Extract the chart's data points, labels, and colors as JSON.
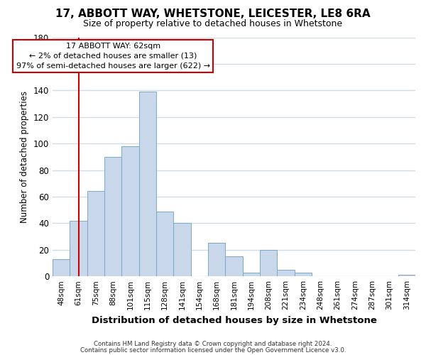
{
  "title": "17, ABBOTT WAY, WHETSTONE, LEICESTER, LE8 6RA",
  "subtitle": "Size of property relative to detached houses in Whetstone",
  "xlabel": "Distribution of detached houses by size in Whetstone",
  "ylabel": "Number of detached properties",
  "bin_labels": [
    "48sqm",
    "61sqm",
    "75sqm",
    "88sqm",
    "101sqm",
    "115sqm",
    "128sqm",
    "141sqm",
    "154sqm",
    "168sqm",
    "181sqm",
    "194sqm",
    "208sqm",
    "221sqm",
    "234sqm",
    "248sqm",
    "261sqm",
    "274sqm",
    "287sqm",
    "301sqm",
    "314sqm"
  ],
  "bar_heights": [
    13,
    42,
    64,
    90,
    98,
    139,
    49,
    40,
    0,
    25,
    15,
    3,
    20,
    5,
    3,
    0,
    0,
    0,
    0,
    0,
    1
  ],
  "bar_color": "#c8d8ea",
  "bar_edge_color": "#7aaac8",
  "vline_x": 1,
  "vline_color": "#cc0000",
  "annotation_title": "17 ABBOTT WAY: 62sqm",
  "annotation_line1": "← 2% of detached houses are smaller (13)",
  "annotation_line2": "97% of semi-detached houses are larger (622) →",
  "annotation_box_color": "#ffffff",
  "annotation_box_edge": "#cc0000",
  "ylim": [
    0,
    180
  ],
  "yticks": [
    0,
    20,
    40,
    60,
    80,
    100,
    120,
    140,
    160,
    180
  ],
  "bg_color": "#ffffff",
  "grid_color": "#d0dce8",
  "footer1": "Contains HM Land Registry data © Crown copyright and database right 2024.",
  "footer2": "Contains public sector information licensed under the Open Government Licence v3.0."
}
